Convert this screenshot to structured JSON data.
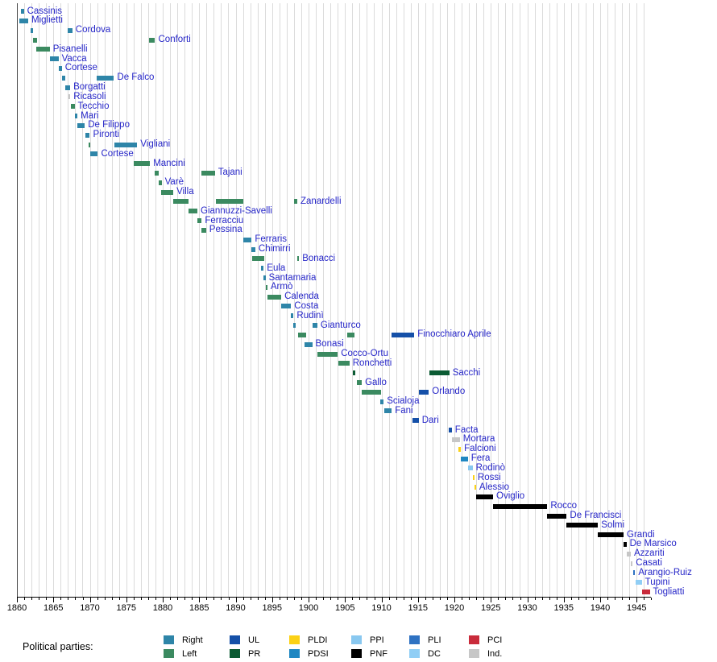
{
  "legend": {
    "heading": "Political parties:",
    "columns": [
      [
        {
          "label": "Right"
        },
        {
          "label": "Left"
        }
      ],
      [
        {
          "label": "UL"
        },
        {
          "label": "PR"
        }
      ],
      [
        {
          "label": "PLDI"
        },
        {
          "label": "PDSI"
        }
      ],
      [
        {
          "label": "PPI"
        },
        {
          "label": "PNF"
        }
      ],
      [
        {
          "label": "PLI"
        },
        {
          "label": "DC"
        }
      ],
      [
        {
          "label": "PCI"
        },
        {
          "label": "Ind."
        }
      ]
    ]
  },
  "party_colors": {
    "Right": "#2E85A8",
    "Left": "#3B8A60",
    "UL": "#1550A8",
    "PR": "#0B5B33",
    "PLDI": "#FBD116",
    "PDSI": "#1F87C2",
    "PPI": "#89C8F0",
    "PNF": "#000000",
    "PLI": "#2E72C2",
    "DC": "#90CEF5",
    "PCI": "#C92B3B",
    "Ind.": "#C7C7C7"
  },
  "chart_data": {
    "type": "timeline",
    "title": "",
    "xlabel": "",
    "axis": {
      "start_year": 1860,
      "end_year": 1947,
      "tick_every": 1,
      "label_every": 5,
      "year_labels": [
        1860,
        1865,
        1870,
        1875,
        1880,
        1885,
        1890,
        1895,
        1900,
        1905,
        1910,
        1915,
        1920,
        1925,
        1930,
        1935,
        1940,
        1945
      ]
    },
    "ministers": [
      {
        "name": "Cassinis",
        "terms": [
          {
            "start": 1860.55,
            "end": 1860.95,
            "party": "Right"
          }
        ]
      },
      {
        "name": "Miglietti",
        "terms": [
          {
            "start": 1860.35,
            "end": 1861.55,
            "party": "Right"
          }
        ]
      },
      {
        "name": "Cordova",
        "terms": [
          {
            "start": 1861.9,
            "end": 1862.25,
            "party": "Right"
          },
          {
            "start": 1867.0,
            "end": 1867.6,
            "party": "Right"
          }
        ]
      },
      {
        "name": "Conforti",
        "terms": [
          {
            "start": 1862.25,
            "end": 1862.8,
            "party": "Left"
          },
          {
            "start": 1878.1,
            "end": 1878.95,
            "party": "Left"
          }
        ]
      },
      {
        "name": "Pisanelli",
        "terms": [
          {
            "start": 1862.7,
            "end": 1864.5,
            "party": "Left"
          }
        ]
      },
      {
        "name": "Vacca",
        "terms": [
          {
            "start": 1864.5,
            "end": 1865.7,
            "party": "Right"
          }
        ]
      },
      {
        "name": "Cortese",
        "terms": [
          {
            "start": 1865.7,
            "end": 1866.15,
            "party": "Right"
          }
        ]
      },
      {
        "name": "De Falco",
        "terms": [
          {
            "start": 1866.15,
            "end": 1866.6,
            "party": "Right"
          },
          {
            "start": 1870.9,
            "end": 1873.3,
            "party": "Right"
          }
        ]
      },
      {
        "name": "Borgatti",
        "terms": [
          {
            "start": 1866.6,
            "end": 1867.3,
            "party": "Right"
          }
        ]
      },
      {
        "name": "Ricasoli",
        "terms": [
          {
            "start": 1867.1,
            "end": 1867.3,
            "party": "Ind."
          }
        ]
      },
      {
        "name": "Tecchio",
        "terms": [
          {
            "start": 1867.4,
            "end": 1867.9,
            "party": "Left"
          }
        ]
      },
      {
        "name": "Mari",
        "terms": [
          {
            "start": 1867.9,
            "end": 1868.3,
            "party": "Right"
          }
        ]
      },
      {
        "name": "De Filippo",
        "terms": [
          {
            "start": 1868.3,
            "end": 1869.3,
            "party": "Right"
          }
        ]
      },
      {
        "name": "Pironti",
        "terms": [
          {
            "start": 1869.35,
            "end": 1870.0,
            "party": "Right"
          }
        ]
      },
      {
        "name": "Vigliani",
        "terms": [
          {
            "start": 1869.8,
            "end": 1870.1,
            "party": "Left"
          },
          {
            "start": 1873.4,
            "end": 1876.5,
            "party": "Right"
          }
        ]
      },
      {
        "name": "Cortese",
        "terms": [
          {
            "start": 1870.1,
            "end": 1871.1,
            "party": "Right"
          }
        ]
      },
      {
        "name": "Mancini",
        "terms": [
          {
            "start": 1876.05,
            "end": 1878.25,
            "party": "Left"
          }
        ]
      },
      {
        "name": "Tajani",
        "terms": [
          {
            "start": 1878.85,
            "end": 1879.45,
            "party": "Left"
          },
          {
            "start": 1885.35,
            "end": 1887.15,
            "party": "Left"
          }
        ]
      },
      {
        "name": "Varè",
        "terms": [
          {
            "start": 1879.45,
            "end": 1879.85,
            "party": "Left"
          }
        ]
      },
      {
        "name": "Villa",
        "terms": [
          {
            "start": 1879.75,
            "end": 1881.45,
            "party": "Left"
          }
        ]
      },
      {
        "name": "Zanardelli",
        "terms": [
          {
            "start": 1881.45,
            "end": 1883.5,
            "party": "Left"
          },
          {
            "start": 1887.25,
            "end": 1891.05,
            "party": "Left"
          },
          {
            "start": 1898.0,
            "end": 1898.45,
            "party": "Left"
          }
        ]
      },
      {
        "name": "Giannuzzi-Savelli",
        "terms": [
          {
            "start": 1883.5,
            "end": 1884.75,
            "party": "Left"
          }
        ]
      },
      {
        "name": "Ferracciu",
        "terms": [
          {
            "start": 1884.75,
            "end": 1885.35,
            "party": "Left"
          }
        ]
      },
      {
        "name": "Pessina",
        "terms": [
          {
            "start": 1885.35,
            "end": 1885.95,
            "party": "Left"
          }
        ]
      },
      {
        "name": "Ferraris",
        "terms": [
          {
            "start": 1891.05,
            "end": 1892.2,
            "party": "Right"
          }
        ]
      },
      {
        "name": "Chimirri",
        "terms": [
          {
            "start": 1892.2,
            "end": 1892.7,
            "party": "Right"
          }
        ]
      },
      {
        "name": "Bonacci",
        "terms": [
          {
            "start": 1892.3,
            "end": 1893.95,
            "party": "Left"
          },
          {
            "start": 1898.45,
            "end": 1898.7,
            "party": "Left"
          }
        ]
      },
      {
        "name": "Eula",
        "terms": [
          {
            "start": 1893.45,
            "end": 1893.85,
            "party": "Right"
          }
        ]
      },
      {
        "name": "Santamaria",
        "terms": [
          {
            "start": 1893.85,
            "end": 1894.1,
            "party": "Right"
          }
        ]
      },
      {
        "name": "Armò",
        "terms": [
          {
            "start": 1894.1,
            "end": 1894.35,
            "party": "Left"
          }
        ]
      },
      {
        "name": "Calenda",
        "terms": [
          {
            "start": 1894.35,
            "end": 1896.25,
            "party": "Left"
          }
        ]
      },
      {
        "name": "Costa",
        "terms": [
          {
            "start": 1896.25,
            "end": 1897.6,
            "party": "Right"
          }
        ]
      },
      {
        "name": "Rudinì",
        "terms": [
          {
            "start": 1897.6,
            "end": 1897.95,
            "party": "Right"
          }
        ]
      },
      {
        "name": "Gianturco",
        "terms": [
          {
            "start": 1897.95,
            "end": 1898.2,
            "party": "Right"
          },
          {
            "start": 1900.5,
            "end": 1901.2,
            "party": "Right"
          }
        ]
      },
      {
        "name": "Finocchiaro Aprile",
        "terms": [
          {
            "start": 1898.6,
            "end": 1899.7,
            "party": "Left"
          },
          {
            "start": 1905.35,
            "end": 1906.35,
            "party": "Left"
          },
          {
            "start": 1911.4,
            "end": 1914.5,
            "party": "UL"
          }
        ]
      },
      {
        "name": "Bonasi",
        "terms": [
          {
            "start": 1899.45,
            "end": 1900.5,
            "party": "Right"
          }
        ]
      },
      {
        "name": "Cocco-Ortu",
        "terms": [
          {
            "start": 1901.2,
            "end": 1904.0,
            "party": "Left"
          }
        ]
      },
      {
        "name": "Ronchetti",
        "terms": [
          {
            "start": 1904.05,
            "end": 1905.6,
            "party": "Left"
          }
        ]
      },
      {
        "name": "Sacchi",
        "terms": [
          {
            "start": 1906.1,
            "end": 1906.4,
            "party": "PR"
          },
          {
            "start": 1916.6,
            "end": 1919.3,
            "party": "PR"
          }
        ]
      },
      {
        "name": "Gallo",
        "terms": [
          {
            "start": 1906.6,
            "end": 1907.3,
            "party": "Left"
          }
        ]
      },
      {
        "name": "Orlando",
        "terms": [
          {
            "start": 1907.3,
            "end": 1910.0,
            "party": "Left"
          },
          {
            "start": 1915.1,
            "end": 1916.5,
            "party": "UL"
          }
        ]
      },
      {
        "name": "Scialoja",
        "terms": [
          {
            "start": 1909.85,
            "end": 1910.3,
            "party": "Right"
          }
        ]
      },
      {
        "name": "Fani",
        "terms": [
          {
            "start": 1910.35,
            "end": 1911.4,
            "party": "Right"
          }
        ]
      },
      {
        "name": "Dari",
        "terms": [
          {
            "start": 1914.2,
            "end": 1915.1,
            "party": "UL"
          }
        ]
      },
      {
        "name": "Facta",
        "terms": [
          {
            "start": 1919.2,
            "end": 1919.65,
            "party": "UL"
          }
        ]
      },
      {
        "name": "Mortara",
        "terms": [
          {
            "start": 1919.65,
            "end": 1920.75,
            "party": "Ind."
          }
        ]
      },
      {
        "name": "Falcioni",
        "terms": [
          {
            "start": 1920.6,
            "end": 1920.9,
            "party": "PLDI"
          }
        ]
      },
      {
        "name": "Fera",
        "terms": [
          {
            "start": 1920.9,
            "end": 1921.85,
            "party": "PDSI"
          }
        ]
      },
      {
        "name": "Rodinò",
        "terms": [
          {
            "start": 1921.85,
            "end": 1922.5,
            "party": "PPI"
          }
        ]
      },
      {
        "name": "Rossi",
        "terms": [
          {
            "start": 1922.5,
            "end": 1922.75,
            "party": "PLDI"
          }
        ]
      },
      {
        "name": "Alessio",
        "terms": [
          {
            "start": 1922.75,
            "end": 1922.95,
            "party": "PLDI"
          }
        ]
      },
      {
        "name": "Oviglio",
        "terms": [
          {
            "start": 1922.95,
            "end": 1925.3,
            "party": "PNF"
          }
        ]
      },
      {
        "name": "Rocco",
        "terms": [
          {
            "start": 1925.3,
            "end": 1932.75,
            "party": "PNF"
          }
        ]
      },
      {
        "name": "De Francisci",
        "terms": [
          {
            "start": 1932.75,
            "end": 1935.4,
            "party": "PNF"
          }
        ]
      },
      {
        "name": "Solmi",
        "terms": [
          {
            "start": 1935.4,
            "end": 1939.7,
            "party": "PNF"
          }
        ]
      },
      {
        "name": "Grandi",
        "terms": [
          {
            "start": 1939.7,
            "end": 1943.2,
            "party": "PNF"
          }
        ]
      },
      {
        "name": "De Marsico",
        "terms": [
          {
            "start": 1943.2,
            "end": 1943.6,
            "party": "PNF"
          }
        ]
      },
      {
        "name": "Azzariti",
        "terms": [
          {
            "start": 1943.6,
            "end": 1944.2,
            "party": "Ind."
          }
        ]
      },
      {
        "name": "Casati",
        "terms": [
          {
            "start": 1944.2,
            "end": 1944.45,
            "party": "Ind."
          }
        ]
      },
      {
        "name": "Arangio-Ruiz",
        "terms": [
          {
            "start": 1944.5,
            "end": 1944.8,
            "party": "PLI"
          }
        ]
      },
      {
        "name": "Tupini",
        "terms": [
          {
            "start": 1944.85,
            "end": 1945.7,
            "party": "DC"
          }
        ]
      },
      {
        "name": "Togliatti",
        "terms": [
          {
            "start": 1945.7,
            "end": 1946.8,
            "party": "PCI"
          }
        ]
      }
    ]
  }
}
